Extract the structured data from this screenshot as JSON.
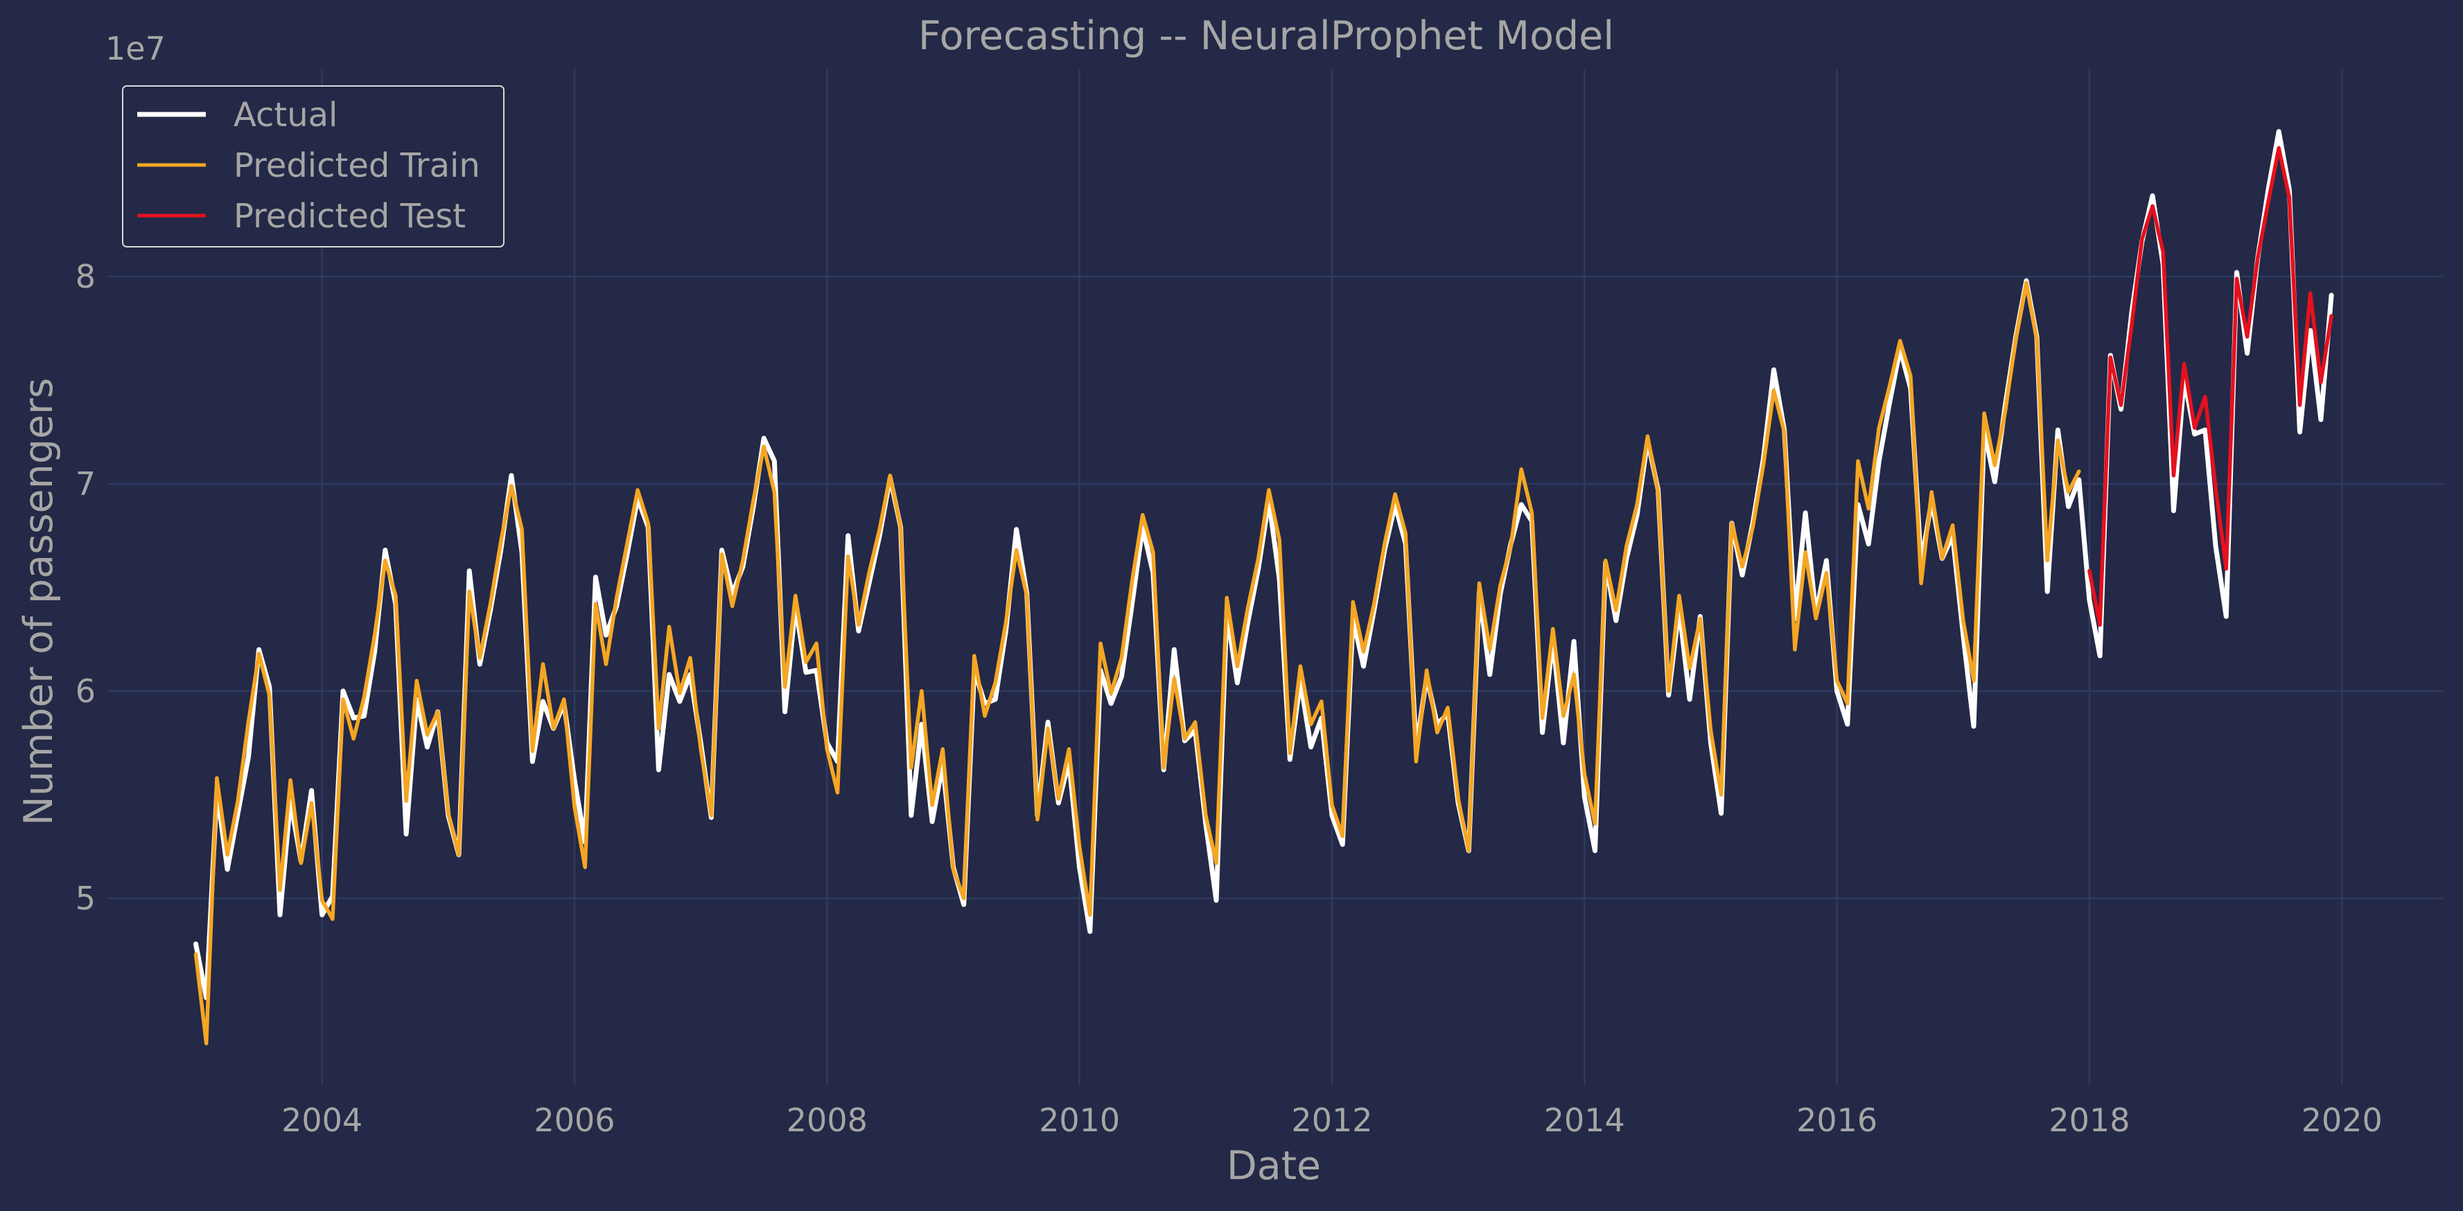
{
  "chart_data": {
    "type": "line",
    "title": "Forecasting -- NeuralProphet Model",
    "xlabel": "Date",
    "ylabel": "Number of passengers",
    "y_multiplier_label": "1e7",
    "x_start": "2003-01",
    "frequency": "monthly",
    "xlim": [
      2002.3,
      2020.8
    ],
    "ylim": [
      4.1,
      9.0
    ],
    "x_ticks": [
      "2004",
      "2006",
      "2008",
      "2010",
      "2012",
      "2014",
      "2016",
      "2018",
      "2020"
    ],
    "y_ticks": [
      "5",
      "6",
      "7",
      "8"
    ],
    "grid": true,
    "legend_position": "top-left",
    "colors": {
      "background": "#232946",
      "grid": "#2f3a62",
      "text": "#a6a6a6",
      "actual": "#ffffff",
      "train": "#f5a623",
      "test": "#e5111e"
    },
    "series": [
      {
        "name": "Actual",
        "start": "2003-01",
        "values": [
          4.78,
          4.52,
          5.52,
          5.14,
          5.41,
          5.68,
          6.2,
          6.02,
          4.92,
          5.47,
          5.18,
          5.52,
          4.92,
          5.01,
          6.0,
          5.87,
          5.88,
          6.19,
          6.68,
          6.42,
          5.31,
          5.96,
          5.73,
          5.9,
          5.4,
          5.21,
          6.58,
          6.13,
          6.39,
          6.68,
          7.04,
          6.67,
          5.66,
          5.95,
          5.82,
          5.94,
          5.57,
          5.27,
          6.55,
          6.27,
          6.41,
          6.66,
          6.93,
          6.79,
          5.62,
          6.08,
          5.95,
          6.08,
          5.75,
          5.39,
          6.68,
          6.47,
          6.6,
          6.89,
          7.22,
          7.11,
          5.9,
          6.41,
          6.09,
          6.1,
          5.75,
          5.66,
          6.75,
          6.29,
          6.52,
          6.75,
          7.03,
          6.79,
          5.4,
          5.84,
          5.37,
          5.65,
          5.15,
          4.97,
          6.1,
          5.94,
          5.96,
          6.29,
          6.78,
          6.47,
          5.4,
          5.85,
          5.46,
          5.66,
          5.15,
          4.84,
          6.1,
          5.94,
          6.07,
          6.42,
          6.79,
          6.57,
          5.62,
          6.2,
          5.76,
          5.81,
          5.36,
          4.99,
          6.38,
          6.04,
          6.33,
          6.59,
          6.92,
          6.54,
          5.67,
          6.05,
          5.73,
          5.87,
          5.4,
          5.26,
          6.35,
          6.12,
          6.39,
          6.68,
          6.9,
          6.71,
          5.72,
          6.07,
          5.84,
          5.89,
          5.46,
          5.23,
          6.48,
          6.08,
          6.47,
          6.71,
          6.9,
          6.82,
          5.8,
          6.25,
          5.75,
          6.24,
          5.49,
          5.23,
          6.62,
          6.34,
          6.64,
          6.85,
          7.21,
          6.97,
          5.98,
          6.4,
          5.96,
          6.36,
          5.75,
          5.41,
          6.81,
          6.56,
          6.81,
          7.12,
          7.55,
          7.26,
          6.35,
          6.86,
          6.37,
          6.63,
          6.0,
          5.84,
          6.9,
          6.71,
          7.11,
          7.39,
          7.65,
          7.46,
          6.61,
          6.92,
          6.64,
          6.75,
          6.27,
          5.83,
          7.26,
          7.01,
          7.38,
          7.71,
          7.98,
          7.71,
          6.48,
          7.26,
          6.89,
          7.02,
          6.44,
          6.17,
          7.62,
          7.36,
          7.82,
          8.17,
          8.39,
          8.06,
          6.87,
          7.51,
          7.24,
          7.26,
          6.7,
          6.36,
          8.02,
          7.63,
          8.09,
          8.42,
          8.7,
          8.42,
          7.25,
          7.74,
          7.31,
          7.91
        ]
      },
      {
        "name": "Predicted Train",
        "start": "2003-01",
        "values": [
          4.73,
          4.3,
          5.58,
          5.21,
          5.47,
          5.85,
          6.18,
          5.98,
          5.04,
          5.57,
          5.17,
          5.46,
          4.99,
          4.9,
          5.96,
          5.77,
          5.97,
          6.27,
          6.63,
          6.46,
          5.47,
          6.05,
          5.79,
          5.9,
          5.41,
          5.21,
          6.48,
          6.16,
          6.42,
          6.72,
          6.99,
          6.78,
          5.71,
          6.13,
          5.82,
          5.96,
          5.44,
          5.15,
          6.42,
          6.13,
          6.45,
          6.71,
          6.97,
          6.81,
          5.82,
          6.31,
          5.99,
          6.16,
          5.72,
          5.4,
          6.66,
          6.41,
          6.63,
          6.92,
          7.18,
          6.96,
          6.02,
          6.46,
          6.14,
          6.23,
          5.72,
          5.51,
          6.65,
          6.32,
          6.57,
          6.78,
          7.04,
          6.79,
          5.63,
          6.0,
          5.45,
          5.72,
          5.14,
          5.0,
          6.17,
          5.88,
          6.04,
          6.33,
          6.68,
          6.46,
          5.38,
          5.82,
          5.48,
          5.72,
          5.25,
          4.92,
          6.23,
          5.99,
          6.16,
          6.53,
          6.85,
          6.67,
          5.63,
          6.06,
          5.77,
          5.85,
          5.4,
          5.17,
          6.45,
          6.12,
          6.4,
          6.64,
          6.97,
          6.73,
          5.7,
          6.12,
          5.84,
          5.95,
          5.45,
          5.3,
          6.43,
          6.19,
          6.42,
          6.71,
          6.95,
          6.76,
          5.66,
          6.1,
          5.8,
          5.92,
          5.48,
          5.23,
          6.52,
          6.2,
          6.51,
          6.7,
          7.07,
          6.86,
          5.87,
          6.3,
          5.88,
          6.08,
          5.6,
          5.36,
          6.63,
          6.39,
          6.7,
          6.9,
          7.23,
          6.96,
          6.0,
          6.46,
          6.11,
          6.35,
          5.81,
          5.5,
          6.81,
          6.6,
          6.79,
          7.09,
          7.45,
          7.25,
          6.2,
          6.67,
          6.35,
          6.57,
          6.05,
          5.94,
          7.11,
          6.88,
          7.27,
          7.47,
          7.69,
          7.52,
          6.52,
          6.96,
          6.64,
          6.8,
          6.34,
          6.05,
          7.34,
          7.09,
          7.35,
          7.7,
          7.97,
          7.7,
          6.63,
          7.21,
          6.96,
          7.06
        ]
      },
      {
        "name": "Predicted Test",
        "start": "2018-01",
        "values": [
          6.58,
          6.32,
          7.61,
          7.38,
          7.76,
          8.18,
          8.34,
          8.12,
          7.04,
          7.58,
          7.27,
          7.42,
          6.98,
          6.59,
          7.99,
          7.71,
          8.09,
          8.36,
          8.62,
          8.38,
          7.38,
          7.92,
          7.49,
          7.81
        ]
      }
    ]
  }
}
